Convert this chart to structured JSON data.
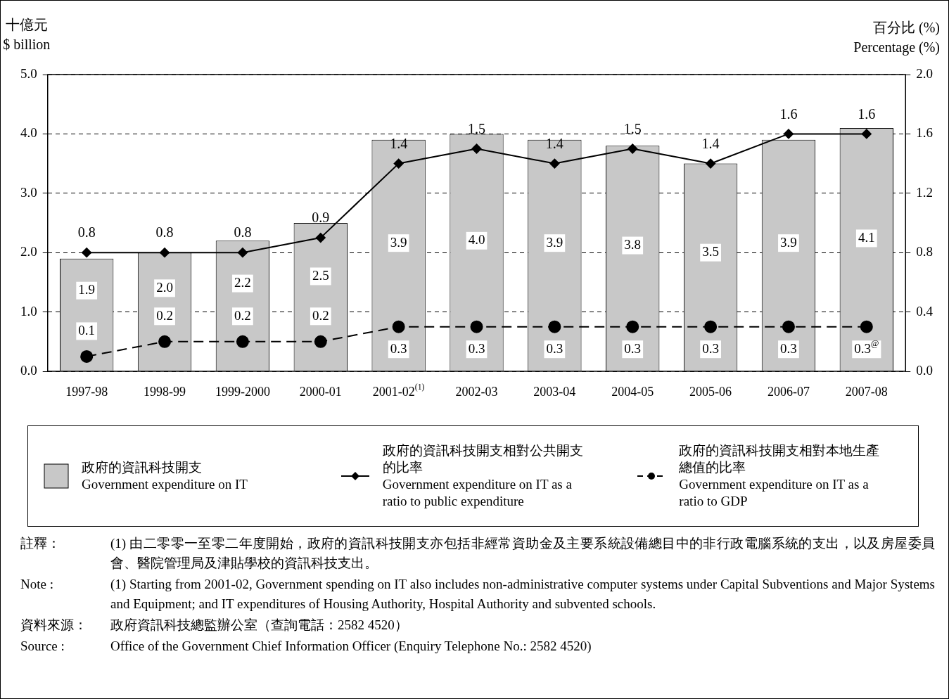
{
  "chart_data": {
    "type": "bar",
    "ylabel": "十億元\n$ billion",
    "y2label": "百分比 (%)\nPercentage (%)",
    "categories": [
      "1997-98",
      "1998-99",
      "1999-2000",
      "2000-01",
      "2001-02$^{(1)}$",
      "2002-03",
      "2003-04",
      "2004-05",
      "2005-06",
      "2006-07",
      "2007-08"
    ],
    "series": [
      {
        "name": "政府的資訊科技開支\nGovernment expenditure on IT",
        "color": "#c8c8c8",
        "values": [
          1.9,
          2.0,
          2.2,
          2.5,
          3.9,
          4.0,
          3.9,
          3.8,
          3.5,
          3.9,
          4.1
        ],
        "value_labels": [
          "1.9",
          "2.0",
          "2.2",
          "2.5",
          "3.9",
          "4.0",
          "3.9",
          "3.8",
          "3.5",
          "3.9",
          "4.1"
        ]
      },
      {
        "name": "政府的資訊科技開支相對公共開支的比率\nGovernment expenditure on IT as a ratio to public expenditure",
        "type": "line",
        "axis": "y2",
        "color": "#000000",
        "marker": "diamond",
        "line_style": "solid",
        "values": [
          0.8,
          0.8,
          0.8,
          0.9,
          1.4,
          1.5,
          1.4,
          1.5,
          1.4,
          1.6,
          1.6
        ]
      },
      {
        "name": "政府的資訊科技開支相對本地生產總值的比率\nGovernment expenditure on IT as a ratio to GDP",
        "type": "line",
        "axis": "y2",
        "color": "#000000",
        "marker": "circle",
        "line_style": "dashed",
        "values": [
          0.1,
          0.2,
          0.2,
          0.2,
          0.3,
          0.3,
          0.3,
          0.3,
          0.3,
          0.3,
          0.3
        ],
        "value_labels": [
          "0.1",
          "0.2",
          "0.2",
          "0.2",
          "0.3",
          "0.3",
          "0.3",
          "0.3",
          "0.3",
          "0.3",
          "0.3$^{@}$"
        ]
      }
    ],
    "data_labels": true,
    "ylim": [
      0,
      5
    ],
    "yticks": [
      {
        "value": 0,
        "label": "0.0"
      },
      {
        "value": 1,
        "label": "1.0"
      },
      {
        "value": 2,
        "label": "2.0"
      },
      {
        "value": 3,
        "label": "3.0"
      },
      {
        "value": 4,
        "label": "4.0"
      },
      {
        "value": 5,
        "label": "5.0"
      }
    ],
    "y2lim": [
      0,
      2
    ],
    "y2ticks": [
      {
        "value": 0,
        "label": "0.0"
      },
      {
        "value": 0.4,
        "label": "0.4"
      },
      {
        "value": 0.8,
        "label": "0.8"
      },
      {
        "value": 1.2,
        "label": "1.2"
      },
      {
        "value": 1.6,
        "label": "1.6"
      },
      {
        "value": 2,
        "label": "2.0"
      }
    ],
    "grid": "y",
    "legend": "bottom",
    "annotations": [
      "註釋：\t(1) 由二零零一至零二年度開始，政府的資訊科技開支亦包括非經常資助金及主要系統設備總目中的非行政電腦系統的支出，以及房屋委員會、醫院管理局及津貼學校的資訊科技支出。",
      "Note :\t(1) Starting from 2001-02, Government spending on IT also includes non-administrative computer systems under Capital Subventions and Major Systems and Equipment; and IT expenditures of Housing Authority, Hospital Authority and subvented schools.",
      "資料來源：\t政府資訊科技總監辦公室（查詢電話：2582 4520）",
      "Source :\tOffice of the Government Chief Information Officer (Enquiry Telephone No.: 2582 4520)"
    ]
  }
}
